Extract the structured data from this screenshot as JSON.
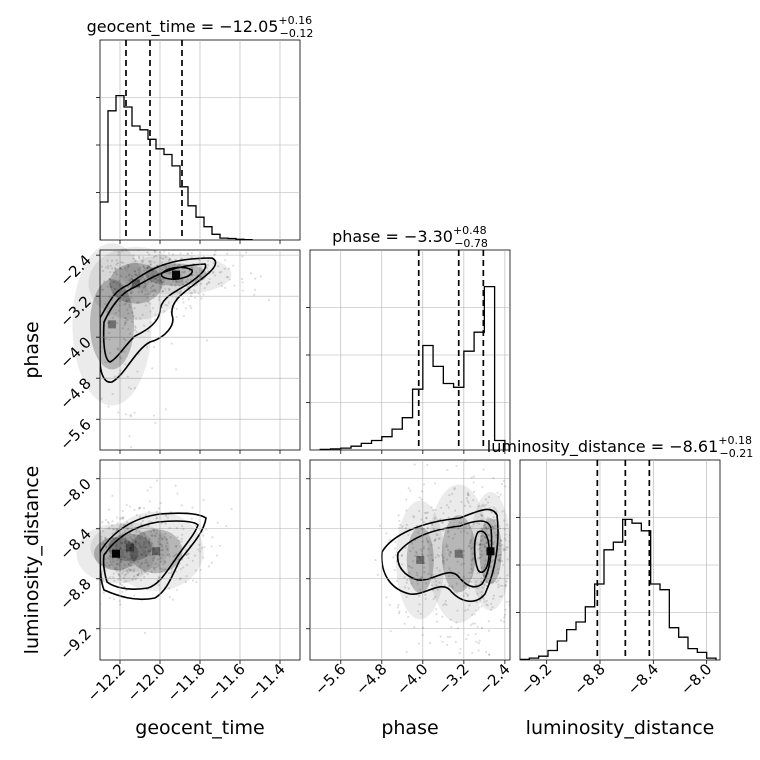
{
  "chart_data": [
    {
      "panel": "hist-geocent_time",
      "type": "histogram",
      "title": "geocent_time = −12.05",
      "title_sup": "+0.16",
      "title_sub": "−0.12",
      "xlim": [
        -12.3,
        -11.3
      ],
      "ymax": 1.0,
      "bin_edges": [
        -12.3,
        -12.26,
        -12.22,
        -12.18,
        -12.14,
        -12.1,
        -12.06,
        -12.02,
        -11.98,
        -11.94,
        -11.9,
        -11.86,
        -11.82,
        -11.78,
        -11.74,
        -11.7,
        -11.66,
        -11.62,
        -11.58,
        -11.54
      ],
      "counts": [
        0.2,
        0.68,
        0.76,
        0.7,
        0.6,
        0.58,
        0.53,
        0.48,
        0.45,
        0.39,
        0.28,
        0.18,
        0.12,
        0.07,
        0.03,
        0.01,
        0.008,
        0.004,
        0.002
      ],
      "quantiles": [
        -12.17,
        -12.05,
        -11.89
      ],
      "xticks": [
        "−12.2",
        "−12.0",
        "−11.8",
        "−11.6",
        "−11.4"
      ]
    },
    {
      "panel": "hist-phase",
      "type": "histogram",
      "title": "phase = −3.30",
      "title_sup": "+0.48",
      "title_sub": "−0.78",
      "xlim": [
        -6.2,
        -2.3
      ],
      "ymax": 1.0,
      "bin_edges": [
        -6.0,
        -5.8,
        -5.6,
        -5.4,
        -5.2,
        -5.0,
        -4.8,
        -4.6,
        -4.4,
        -4.2,
        -4.0,
        -3.8,
        -3.6,
        -3.4,
        -3.2,
        -3.0,
        -2.8,
        -2.6,
        -2.4
      ],
      "counts": [
        0.003,
        0.006,
        0.01,
        0.02,
        0.035,
        0.05,
        0.07,
        0.11,
        0.17,
        0.32,
        0.55,
        0.44,
        0.35,
        0.33,
        0.52,
        0.62,
        0.86,
        0.05
      ],
      "quantiles": [
        -4.08,
        -3.3,
        -2.82
      ],
      "xticks": [
        "−5.6",
        "−4.8",
        "−4.0",
        "−3.2",
        "−2.4"
      ]
    },
    {
      "panel": "hist-luminosity_distance",
      "type": "histogram",
      "title": "luminosity_distance = −8.61",
      "title_sup": "+0.18",
      "title_sub": "−0.21",
      "xlim": [
        -9.4,
        -7.9
      ],
      "ymax": 1.0,
      "bin_edges": [
        -9.4,
        -9.33,
        -9.26,
        -9.19,
        -9.12,
        -9.05,
        -8.98,
        -8.91,
        -8.84,
        -8.77,
        -8.7,
        -8.63,
        -8.56,
        -8.49,
        -8.42,
        -8.35,
        -8.28,
        -8.21,
        -8.14,
        -8.07,
        -8.0,
        -7.93
      ],
      "counts": [
        0.003,
        0.01,
        0.02,
        0.05,
        0.1,
        0.16,
        0.2,
        0.28,
        0.4,
        0.58,
        0.62,
        0.74,
        0.72,
        0.68,
        0.4,
        0.37,
        0.17,
        0.12,
        0.06,
        0.04,
        0.01
      ],
      "quantiles": [
        -8.82,
        -8.61,
        -8.43
      ],
      "xticks": [
        "−9.2",
        "−8.8",
        "−8.4",
        "−8.0"
      ]
    },
    {
      "panel": "2d-geocent_time-phase",
      "type": "scatter",
      "x_param": "geocent_time",
      "y_param": "phase",
      "xlim": [
        -12.3,
        -11.3
      ],
      "ylim": [
        -6.2,
        -2.3
      ],
      "yticks": [
        "−2.4",
        "−3.2",
        "−4.0",
        "−4.8",
        "−5.6"
      ],
      "density_peaks": [
        {
          "x": -11.92,
          "y": -2.78,
          "w": 0.07,
          "h": 0.1
        },
        {
          "x": -12.12,
          "y": -2.95,
          "w": 0.06,
          "h": 0.18
        },
        {
          "x": -12.24,
          "y": -3.75,
          "w": 0.05,
          "h": 0.4
        }
      ]
    },
    {
      "panel": "2d-geocent_time-luminosity_distance",
      "type": "scatter",
      "x_param": "geocent_time",
      "y_param": "luminosity_distance",
      "xlim": [
        -12.3,
        -11.3
      ],
      "ylim": [
        -9.45,
        -7.85
      ],
      "yticks": [
        "−8.0",
        "−8.4",
        "−8.8",
        "−9.2"
      ],
      "density_peaks": [
        {
          "x": -12.22,
          "y": -8.6,
          "w": 0.05,
          "h": 0.06
        },
        {
          "x": -12.02,
          "y": -8.58,
          "w": 0.06,
          "h": 0.08
        },
        {
          "x": -12.15,
          "y": -8.55,
          "w": 0.05,
          "h": 0.05
        }
      ]
    },
    {
      "panel": "2d-phase-luminosity_distance",
      "type": "scatter",
      "x_param": "phase",
      "y_param": "luminosity_distance",
      "xlim": [
        -6.2,
        -2.3
      ],
      "ylim": [
        -9.45,
        -7.85
      ],
      "density_peaks": [
        {
          "x": -2.68,
          "y": -8.58,
          "w": 0.1,
          "h": 0.12
        },
        {
          "x": -4.05,
          "y": -8.65,
          "w": 0.12,
          "h": 0.12
        },
        {
          "x": -3.3,
          "y": -8.6,
          "w": 0.15,
          "h": 0.14
        }
      ]
    }
  ],
  "axis_labels": {
    "geocent_time": "geocent_time",
    "phase": "phase",
    "luminosity_distance": "luminosity_distance"
  }
}
